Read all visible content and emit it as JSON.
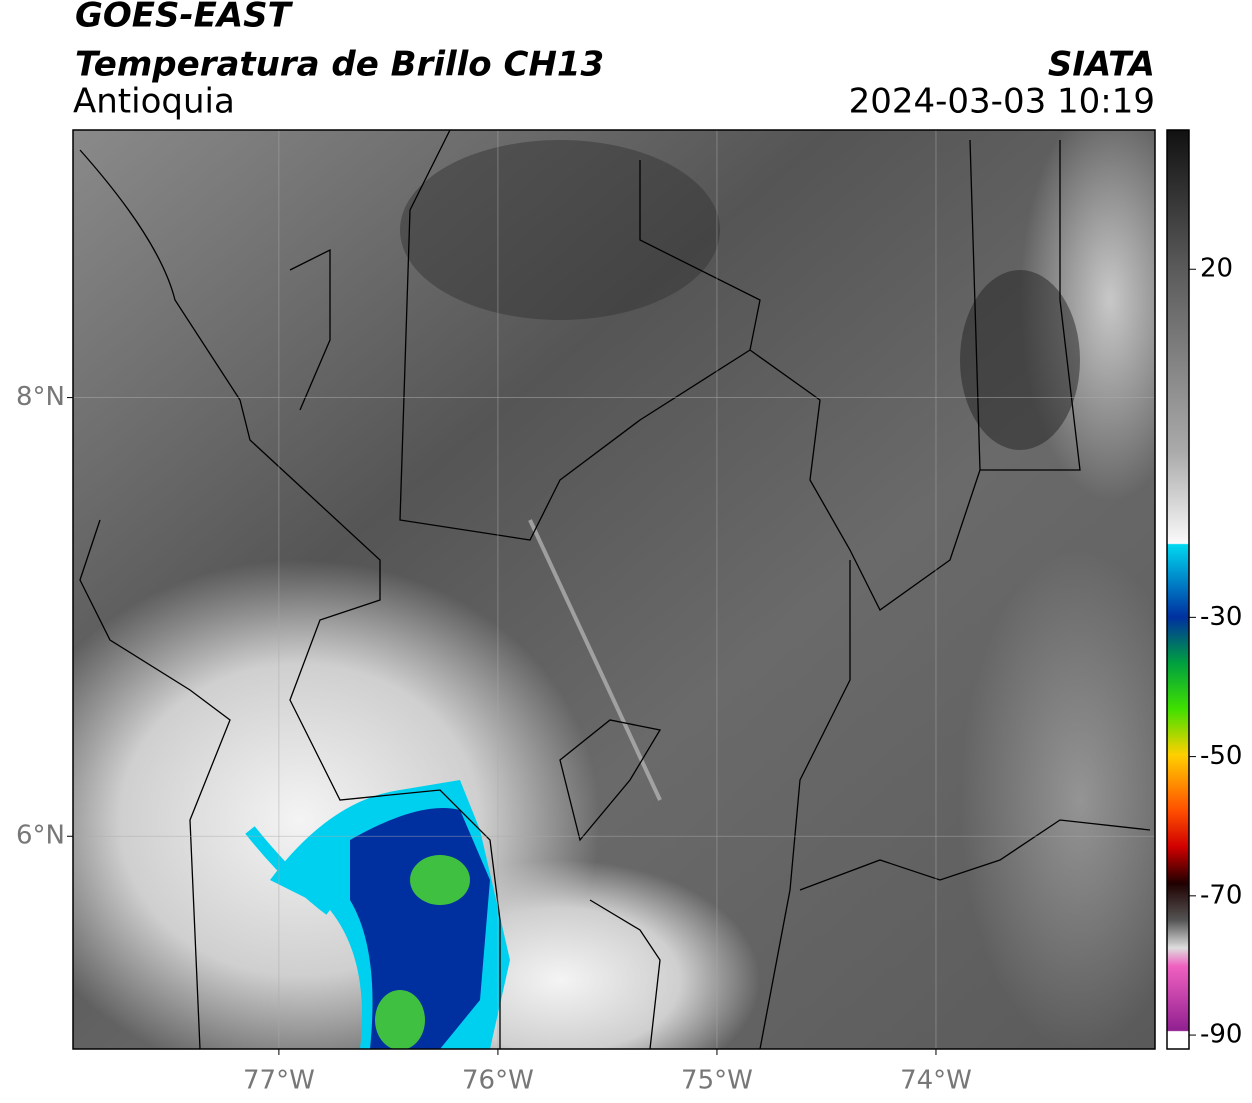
{
  "header": {
    "source": "GOES-EAST",
    "product": "Temperatura de Brillo CH13",
    "region": "Antioquia",
    "agency": "SIATA",
    "datetime": "2024-03-03 10:19"
  },
  "map": {
    "xlim": [
      -77.94,
      -73.0
    ],
    "ylim": [
      5.03,
      9.22
    ],
    "xticks": [
      {
        "value": -77,
        "label": "77°W"
      },
      {
        "value": -76,
        "label": "76°W"
      },
      {
        "value": -75,
        "label": "75°W"
      },
      {
        "value": -74,
        "label": "74°W"
      }
    ],
    "yticks": [
      {
        "value": 6,
        "label": "6°N"
      },
      {
        "value": 8,
        "label": "8°N"
      }
    ],
    "grid": true
  },
  "colorbar": {
    "lim": [
      -92,
      40
    ],
    "ticks": [
      20,
      -30,
      -50,
      -70,
      -90
    ]
  }
}
